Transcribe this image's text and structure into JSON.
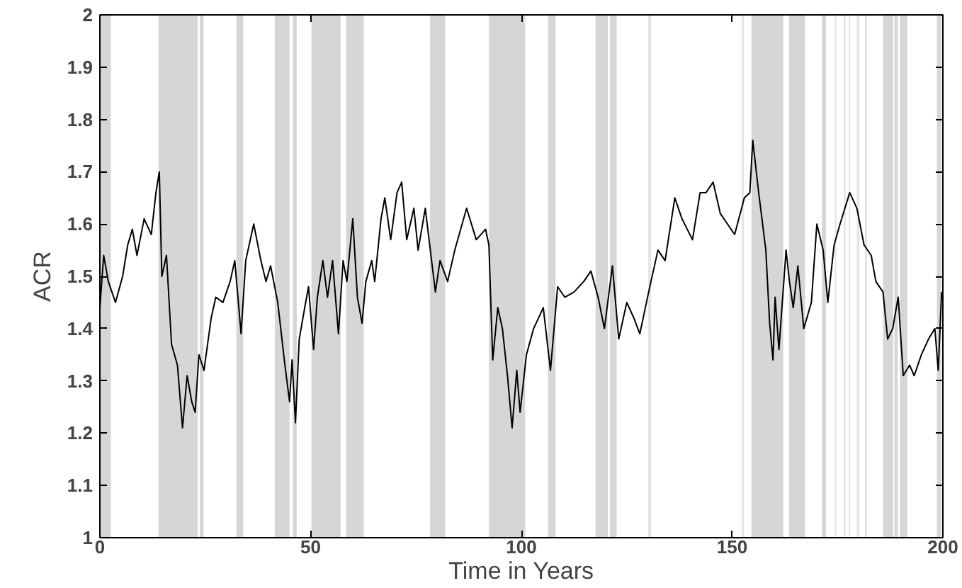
{
  "chart_data": {
    "type": "line",
    "xlabel": "Time in Years",
    "ylabel": "ACR",
    "xlim": [
      0,
      200
    ],
    "xticks": [
      0,
      50,
      100,
      150,
      200
    ],
    "ylim": [
      1,
      2
    ],
    "yticks": [
      1,
      1.1,
      1.2,
      1.3,
      1.4,
      1.5,
      1.6,
      1.7,
      1.8,
      1.9,
      2
    ],
    "grid": false,
    "line_style": "solid",
    "marker": "none",
    "series": [
      {
        "color": "#000000",
        "x": [
          0,
          0.9,
          2,
          3.7,
          5.4,
          6.6,
          7.7,
          8.8,
          10.5,
          12.2,
          13.3,
          14.1,
          14.7,
          15.8,
          17,
          18.4,
          19.6,
          20.7,
          21.8,
          22.6,
          23.5,
          24.7,
          26.4,
          27.5,
          29.2,
          30.9,
          32,
          33.5,
          34.6,
          36.5,
          38.2,
          39.4,
          40.5,
          42.2,
          43.9,
          45,
          45.6,
          46.4,
          47.3,
          48.6,
          49.5,
          50.7,
          51.6,
          52.9,
          54,
          55.2,
          56.6,
          57.7,
          58.6,
          60,
          61.1,
          62.2,
          63.1,
          64.5,
          65.2,
          66.7,
          67.6,
          69,
          70.5,
          71.6,
          72.8,
          74.5,
          75.5,
          77.2,
          79.6,
          80.7,
          82.5,
          84.2,
          87,
          89.3,
          91.5,
          92.3,
          93.2,
          94.4,
          95.5,
          96.7,
          97.8,
          98.9,
          99.7,
          101.2,
          102.9,
          105.2,
          106.9,
          108.6,
          110.3,
          112.5,
          114.8,
          116.5,
          118.2,
          119.7,
          121.6,
          123.1,
          125,
          126.7,
          128.1,
          130.2,
          132.4,
          134.1,
          136.4,
          138.1,
          140.6,
          142.4,
          143.8,
          145.5,
          147.2,
          148.9,
          150.6,
          152.9,
          154.2,
          154.9,
          156.3,
          158,
          158.9,
          159.7,
          160.2,
          161.1,
          162.8,
          163.6,
          164.5,
          165.6,
          167,
          168.8,
          170.1,
          171.6,
          172.7,
          174.2,
          175.6,
          177.9,
          179.6,
          181.3,
          183,
          184.1,
          185.8,
          186.9,
          188.1,
          189.4,
          190.6,
          192.1,
          193.2,
          194.9,
          196.6,
          198.1,
          198.9,
          199.7
        ],
        "values": [
          1.44,
          1.54,
          1.49,
          1.45,
          1.5,
          1.56,
          1.59,
          1.54,
          1.61,
          1.58,
          1.66,
          1.7,
          1.5,
          1.54,
          1.37,
          1.33,
          1.21,
          1.31,
          1.26,
          1.24,
          1.35,
          1.32,
          1.42,
          1.46,
          1.45,
          1.49,
          1.53,
          1.39,
          1.53,
          1.6,
          1.53,
          1.49,
          1.52,
          1.45,
          1.33,
          1.26,
          1.34,
          1.22,
          1.38,
          1.44,
          1.48,
          1.36,
          1.46,
          1.53,
          1.46,
          1.53,
          1.39,
          1.53,
          1.49,
          1.61,
          1.46,
          1.41,
          1.49,
          1.53,
          1.49,
          1.61,
          1.65,
          1.57,
          1.66,
          1.68,
          1.57,
          1.63,
          1.55,
          1.63,
          1.47,
          1.53,
          1.49,
          1.55,
          1.63,
          1.57,
          1.59,
          1.56,
          1.34,
          1.44,
          1.4,
          1.31,
          1.21,
          1.32,
          1.24,
          1.35,
          1.4,
          1.44,
          1.32,
          1.48,
          1.46,
          1.47,
          1.49,
          1.51,
          1.46,
          1.4,
          1.52,
          1.38,
          1.45,
          1.42,
          1.39,
          1.47,
          1.55,
          1.53,
          1.65,
          1.61,
          1.57,
          1.66,
          1.66,
          1.68,
          1.62,
          1.6,
          1.58,
          1.65,
          1.66,
          1.76,
          1.66,
          1.55,
          1.41,
          1.34,
          1.46,
          1.36,
          1.55,
          1.49,
          1.44,
          1.52,
          1.4,
          1.45,
          1.6,
          1.55,
          1.45,
          1.56,
          1.6,
          1.66,
          1.63,
          1.56,
          1.54,
          1.49,
          1.47,
          1.38,
          1.4,
          1.46,
          1.31,
          1.33,
          1.31,
          1.35,
          1.38,
          1.4,
          1.32,
          1.47
        ]
      }
    ],
    "bands": [
      {
        "axis": "x",
        "from": 0,
        "to": 2.6,
        "color": "#d6d6d6"
      },
      {
        "axis": "x",
        "from": 13.9,
        "to": 23.2,
        "color": "#d6d6d6"
      },
      {
        "axis": "x",
        "from": 23.7,
        "to": 24.6,
        "color": "#d6d6d6"
      },
      {
        "axis": "x",
        "from": 32.4,
        "to": 34,
        "color": "#d6d6d6"
      },
      {
        "axis": "x",
        "from": 41.5,
        "to": 45,
        "color": "#d6d6d6"
      },
      {
        "axis": "x",
        "from": 45.8,
        "to": 46.7,
        "color": "#d6d6d6"
      },
      {
        "axis": "x",
        "from": 50.2,
        "to": 57.1,
        "color": "#d6d6d6"
      },
      {
        "axis": "x",
        "from": 58.4,
        "to": 62.6,
        "color": "#d6d6d6"
      },
      {
        "axis": "x",
        "from": 78.3,
        "to": 81.9,
        "color": "#d6d6d6"
      },
      {
        "axis": "x",
        "from": 92.3,
        "to": 100.9,
        "color": "#d6d6d6"
      },
      {
        "axis": "x",
        "from": 106.3,
        "to": 108.1,
        "color": "#d6d6d6"
      },
      {
        "axis": "x",
        "from": 117.6,
        "to": 120.5,
        "color": "#d6d6d6"
      },
      {
        "axis": "x",
        "from": 121,
        "to": 122.6,
        "color": "#d6d6d6"
      },
      {
        "axis": "x",
        "from": 130.1,
        "to": 130.8,
        "color": "#e4e4e4"
      },
      {
        "axis": "x",
        "from": 152.3,
        "to": 152.8,
        "color": "#e4e4e4"
      },
      {
        "axis": "x",
        "from": 154.6,
        "to": 162.1,
        "color": "#d6d6d6"
      },
      {
        "axis": "x",
        "from": 163.5,
        "to": 167.3,
        "color": "#d6d6d6"
      },
      {
        "axis": "x",
        "from": 171.3,
        "to": 172.3,
        "color": "#d6d6d6"
      },
      {
        "axis": "x",
        "from": 174.4,
        "to": 174.7,
        "color": "#e4e4e4"
      },
      {
        "axis": "x",
        "from": 176.5,
        "to": 176.9,
        "color": "#e4e4e4"
      },
      {
        "axis": "x",
        "from": 177.7,
        "to": 178,
        "color": "#e4e4e4"
      },
      {
        "axis": "x",
        "from": 179.6,
        "to": 180.2,
        "color": "#e4e4e4"
      },
      {
        "axis": "x",
        "from": 181.5,
        "to": 182,
        "color": "#e4e4e4"
      },
      {
        "axis": "x",
        "from": 185.8,
        "to": 188.2,
        "color": "#d6d6d6"
      },
      {
        "axis": "x",
        "from": 188.5,
        "to": 189.3,
        "color": "#d6d6d6"
      },
      {
        "axis": "x",
        "from": 189.8,
        "to": 191.6,
        "color": "#d6d6d6"
      },
      {
        "axis": "x",
        "from": 198.6,
        "to": 199.6,
        "color": "#d6d6d6"
      }
    ]
  }
}
